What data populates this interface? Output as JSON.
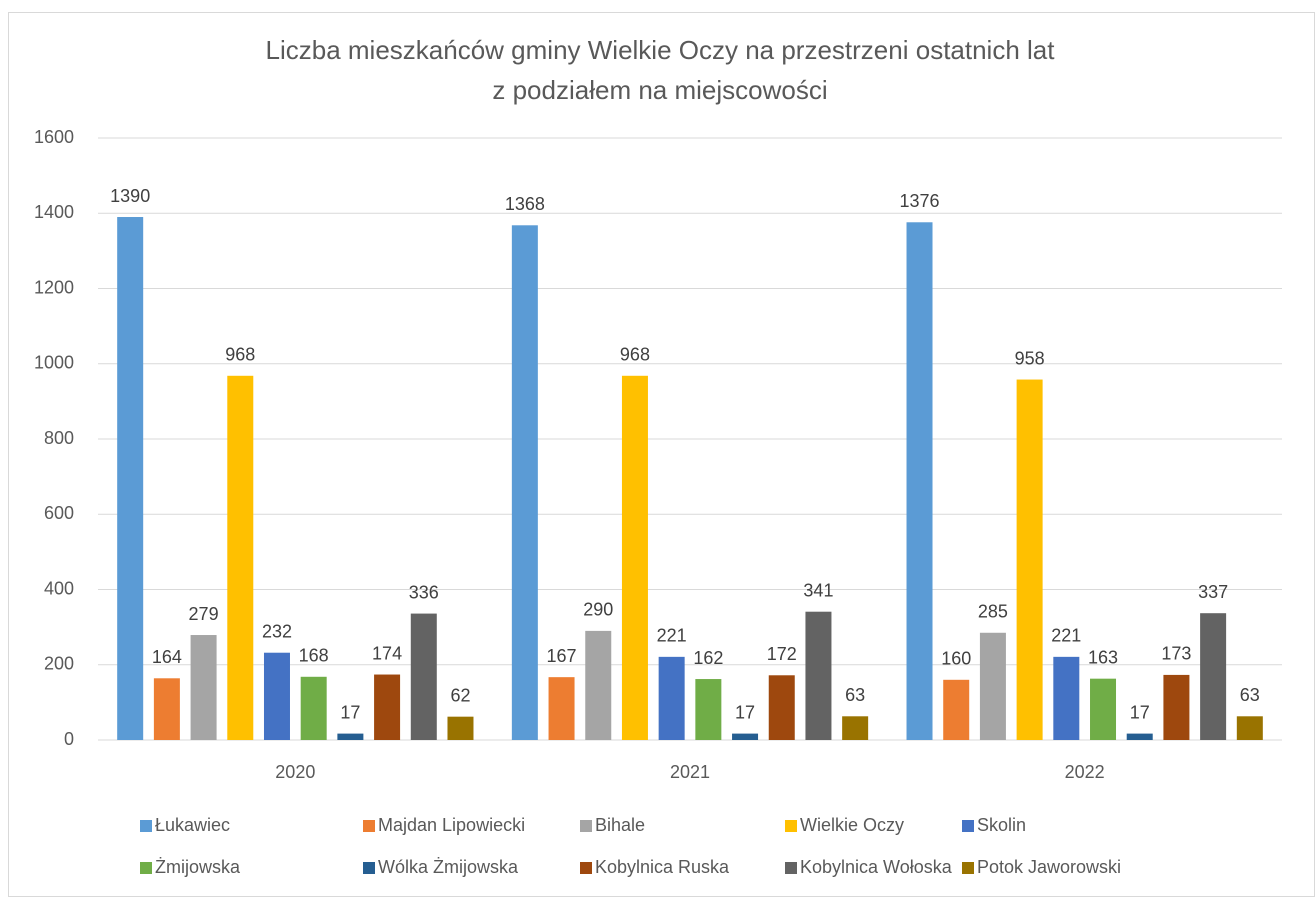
{
  "chart_data": {
    "type": "bar",
    "title": [
      "Liczba mieszkańców gminy Wielkie Oczy na przestrzeni ostatnich lat",
      "z podziałem na miejscowości"
    ],
    "categories": [
      "2020",
      "2021",
      "2022"
    ],
    "series": [
      {
        "name": "Łukawiec",
        "color": "#5b9bd5",
        "values": [
          1390,
          1368,
          1376
        ]
      },
      {
        "name": "Majdan Lipowiecki",
        "color": "#ed7d31",
        "values": [
          164,
          167,
          160
        ]
      },
      {
        "name": "Bihale",
        "color": "#a5a5a5",
        "values": [
          279,
          290,
          285
        ]
      },
      {
        "name": "Wielkie Oczy",
        "color": "#ffc000",
        "values": [
          968,
          968,
          958
        ]
      },
      {
        "name": "Skolin",
        "color": "#4472c4",
        "values": [
          232,
          221,
          221
        ]
      },
      {
        "name": "Żmijowska",
        "color": "#70ad47",
        "values": [
          168,
          162,
          163
        ]
      },
      {
        "name": "Wólka Żmijowska",
        "color": "#255e91",
        "values": [
          17,
          17,
          17
        ]
      },
      {
        "name": "Kobylnica Ruska",
        "color": "#9e480e",
        "values": [
          174,
          172,
          173
        ]
      },
      {
        "name": "Kobylnica Wołoska",
        "color": "#636363",
        "values": [
          336,
          341,
          337
        ]
      },
      {
        "name": "Potok Jaworowski",
        "color": "#997300",
        "values": [
          62,
          63,
          63
        ]
      }
    ],
    "ylim": [
      0,
      1600
    ],
    "yticks": [
      0,
      200,
      400,
      600,
      800,
      1000,
      1200,
      1400,
      1600
    ],
    "grid": true,
    "legend": "bottom"
  }
}
